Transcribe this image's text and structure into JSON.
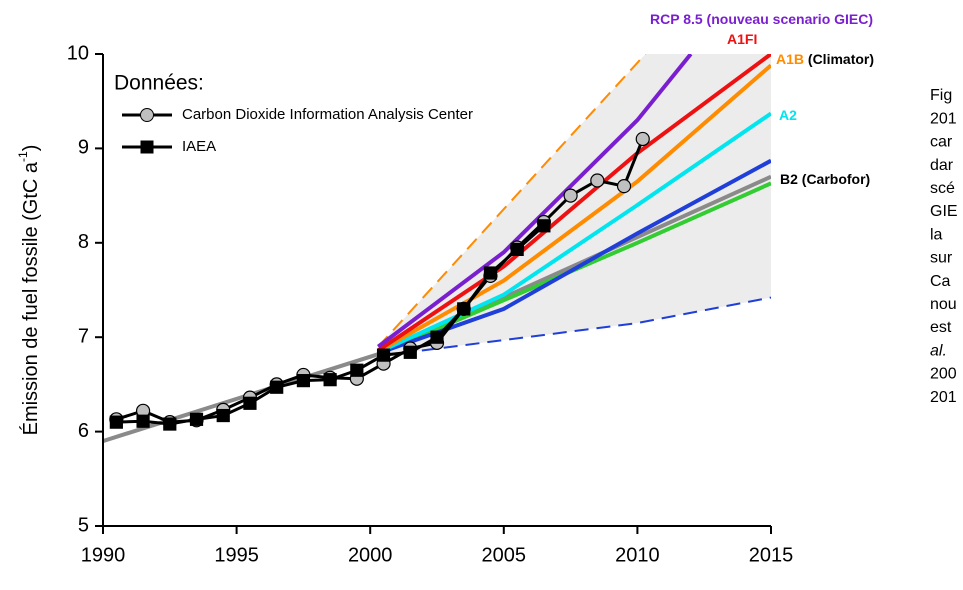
{
  "chart_data": {
    "type": "line",
    "y_label": {
      "main": "Émission de fuel fossile (GtC a",
      "sup": "-1",
      "end": ")"
    },
    "legend_title": "Données:",
    "xlim": [
      1990,
      2015
    ],
    "xticks": [
      1990,
      1995,
      2000,
      2005,
      2010,
      2015
    ],
    "ylim": [
      5,
      10
    ],
    "yticks": [
      5,
      6,
      7,
      8,
      9,
      10
    ],
    "envelope_color": "#ececec",
    "series": [
      {
        "name": "Carbon Dioxide Information Analysis Center",
        "marker": "circle",
        "color": "#000000",
        "marker_fill": "#c0c0c0",
        "x": [
          1990.5,
          1991.5,
          1992.5,
          1993.5,
          1994.5,
          1995.5,
          1996.5,
          1997.5,
          1998.5,
          1999.5,
          2000.5,
          2001.5,
          2002.5,
          2003.5,
          2004.5,
          2005.5,
          2006.5,
          2007.5,
          2008.5,
          2009.5,
          2010.2
        ],
        "values": [
          6.13,
          6.22,
          6.1,
          6.12,
          6.23,
          6.36,
          6.5,
          6.6,
          6.57,
          6.56,
          6.72,
          6.88,
          6.94,
          7.3,
          7.65,
          7.95,
          8.22,
          8.5,
          8.66,
          8.6,
          9.1
        ]
      },
      {
        "name": "IAEA",
        "marker": "square",
        "color": "#000000",
        "marker_fill": "#000000",
        "x": [
          1990.5,
          1991.5,
          1992.5,
          1993.5,
          1994.5,
          1995.5,
          1996.5,
          1997.5,
          1998.5,
          1999.5,
          2000.5,
          2001.5,
          2002.5,
          2003.5,
          2004.5,
          2005.5,
          2006.5
        ],
        "values": [
          6.1,
          6.11,
          6.08,
          6.13,
          6.17,
          6.3,
          6.47,
          6.54,
          6.55,
          6.65,
          6.81,
          6.84,
          7.0,
          7.3,
          7.68,
          7.93,
          8.18
        ]
      }
    ],
    "scenarios": [
      {
        "color": "#ff8c00",
        "dashed": true,
        "x": [
          2000.3,
          2010.3
        ],
        "values": [
          6.9,
          10.0
        ]
      },
      {
        "color": "#1f3fd8",
        "dashed": true,
        "x": [
          2000.3,
          2010,
          2015
        ],
        "values": [
          6.8,
          7.15,
          7.42
        ]
      },
      {
        "color": "#8a8a8a",
        "x": [
          1990,
          2000.3,
          2015
        ],
        "values": [
          5.9,
          6.82,
          8.7
        ]
      },
      {
        "color": "#33cc33",
        "x": [
          2000.3,
          2010,
          2015
        ],
        "values": [
          6.82,
          8.0,
          8.63
        ]
      },
      {
        "color": "#1f3fd8",
        "x": [
          2000.3,
          2005,
          2010,
          2015
        ],
        "values": [
          6.83,
          7.3,
          8.1,
          8.87
        ]
      },
      {
        "color": "#00e5ee",
        "x": [
          2000.3,
          2005,
          2010,
          2015
        ],
        "values": [
          6.84,
          7.45,
          8.4,
          9.37
        ]
      },
      {
        "color": "#ff8c00",
        "x": [
          2000.3,
          2005,
          2010,
          2015
        ],
        "values": [
          6.85,
          7.6,
          8.65,
          9.88
        ]
      },
      {
        "color": "#ee1111",
        "x": [
          2000.3,
          2005,
          2010,
          2015
        ],
        "values": [
          6.86,
          7.75,
          8.95,
          10.0
        ]
      },
      {
        "color": "#7a1fd0",
        "x": [
          2000.3,
          2005,
          2010,
          2012
        ],
        "values": [
          6.9,
          7.9,
          9.3,
          10.0
        ]
      }
    ],
    "annotations": [
      [
        {
          "text": "RCP 8.5 (nouveau scenario GIEC)",
          "color": "#7a1fd0"
        }
      ],
      [
        {
          "text": "A1FI",
          "color": "#ee1111"
        }
      ],
      [
        {
          "text": "A1B",
          "color": "#ff8c00"
        },
        {
          "text": " (Climator)",
          "color": "#000000"
        }
      ],
      [
        {
          "text": "A2",
          "color": "#00e5ee"
        }
      ],
      [
        {
          "text": "B2 (Carbofor)",
          "color": "#000000"
        }
      ]
    ]
  },
  "side_text": [
    "Fig",
    "201",
    "car",
    "dar",
    "scé",
    "GIE",
    "la",
    "sur",
    "Ca",
    "nou",
    "est",
    "al.",
    "200",
    "201"
  ]
}
